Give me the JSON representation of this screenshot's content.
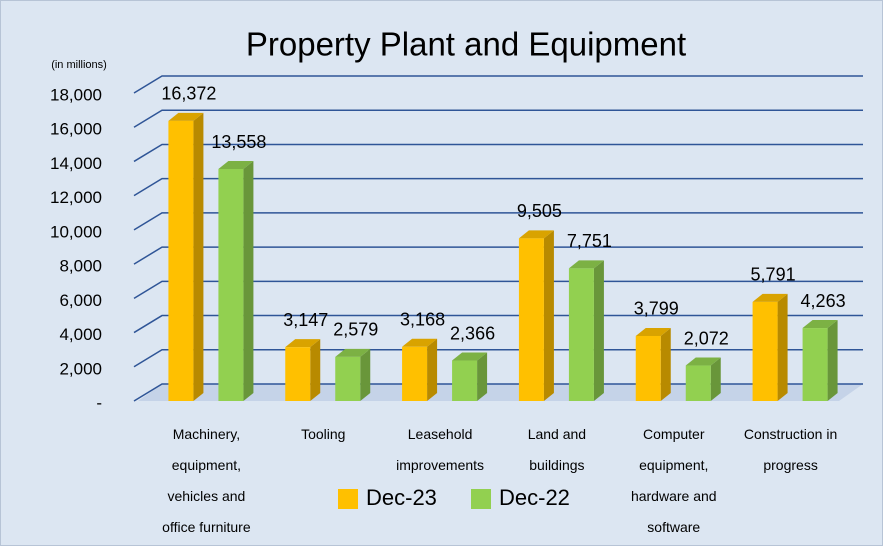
{
  "chart_data": {
    "type": "bar3d",
    "title": "Property Plant and Equipment",
    "y_axis_label": "(in millions)",
    "categories": [
      "Machinery, equipment, vehicles and office furniture",
      "Tooling",
      "Leasehold improvements",
      "Land and buildings",
      "Computer equipment, hardware and software",
      "Construction in progress"
    ],
    "series": [
      {
        "name": "Dec-23",
        "color": "#FFC000",
        "values": [
          16372,
          3147,
          3168,
          9505,
          3799,
          5791
        ],
        "value_labels": [
          "16,372",
          "3,147",
          "3,168",
          "9,505",
          "3,799",
          "5,791"
        ]
      },
      {
        "name": "Dec-22",
        "color": "#92D050",
        "values": [
          13558,
          2579,
          2366,
          7751,
          2072,
          4263
        ],
        "value_labels": [
          "13,558",
          "2,579",
          "2,366",
          "7,751",
          "2,072",
          "4,263"
        ]
      }
    ],
    "ylim": [
      0,
      18000
    ],
    "yticks": [
      {
        "value": 0,
        "label": "-"
      },
      {
        "value": 2000,
        "label": "2,000"
      },
      {
        "value": 4000,
        "label": "4,000"
      },
      {
        "value": 6000,
        "label": "6,000"
      },
      {
        "value": 8000,
        "label": "8,000"
      },
      {
        "value": 10000,
        "label": "10,000"
      },
      {
        "value": 12000,
        "label": "12,000"
      },
      {
        "value": 14000,
        "label": "14,000"
      },
      {
        "value": 16000,
        "label": "16,000"
      },
      {
        "value": 18000,
        "label": "18,000"
      }
    ],
    "grid": true,
    "legend": "bottom"
  }
}
